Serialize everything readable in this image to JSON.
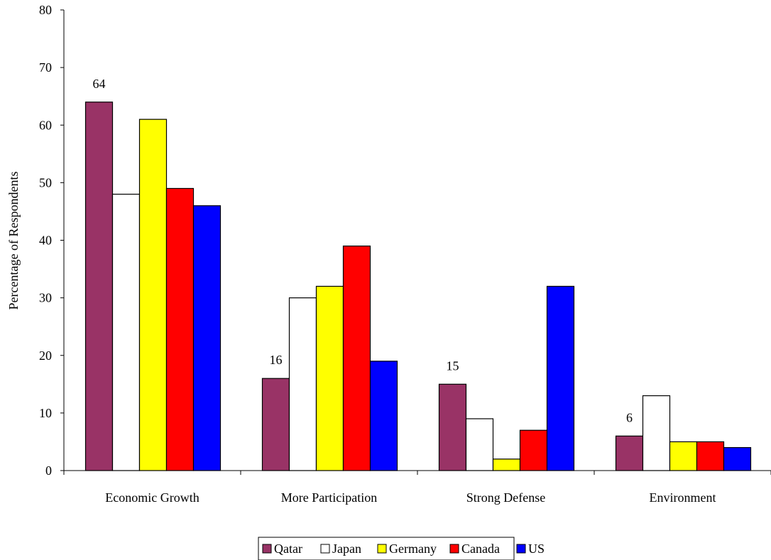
{
  "chart_data": {
    "type": "bar",
    "title": "",
    "xlabel": "",
    "ylabel": "Percentage of Respondents",
    "ylim": [
      0,
      80
    ],
    "yticks": [
      0,
      10,
      20,
      30,
      40,
      50,
      60,
      70,
      80
    ],
    "grid": false,
    "legend_position": "bottom",
    "categories": [
      "Economic Growth",
      "More Participation",
      "Strong Defense",
      "Environment"
    ],
    "series": [
      {
        "name": "Qatar",
        "color": "#993366",
        "values": [
          64,
          16,
          15,
          6
        ]
      },
      {
        "name": "Japan",
        "color": "#ffffff",
        "values": [
          48,
          30,
          9,
          13
        ]
      },
      {
        "name": "Germany",
        "color": "#ffff00",
        "values": [
          61,
          32,
          2,
          5
        ]
      },
      {
        "name": "Canada",
        "color": "#ff0000",
        "values": [
          49,
          39,
          7,
          5
        ]
      },
      {
        "name": "US",
        "color": "#0000ff",
        "values": [
          46,
          19,
          32,
          4
        ]
      }
    ],
    "data_labels": [
      {
        "series": "Qatar",
        "category": "Economic Growth",
        "text": "64"
      },
      {
        "series": "Qatar",
        "category": "More Participation",
        "text": "16"
      },
      {
        "series": "Qatar",
        "category": "Strong Defense",
        "text": "15"
      },
      {
        "series": "Qatar",
        "category": "Environment",
        "text": "6"
      }
    ]
  }
}
